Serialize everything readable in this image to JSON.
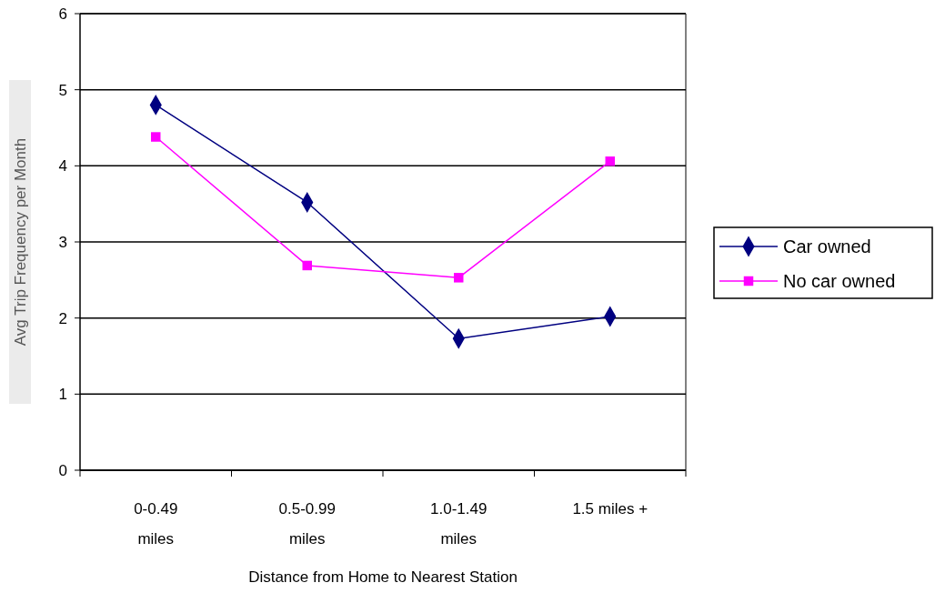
{
  "chart_data": {
    "type": "line",
    "xlabel": "Distance from Home to Nearest Station",
    "ylabel": "Avg Trip Frequency per Month",
    "categories": [
      "0-0.49 miles",
      "0.5-0.99 miles",
      "1.0-1.49 miles",
      "1.5 miles +"
    ],
    "ylim": [
      0,
      6
    ],
    "yticks": [
      0,
      1,
      2,
      3,
      4,
      5,
      6
    ],
    "grid": "y",
    "legend": "right",
    "series": [
      {
        "name": "Car owned",
        "color": "#000080",
        "marker": "diamond",
        "values": [
          4.8,
          3.52,
          1.73,
          2.02
        ]
      },
      {
        "name": "No car owned",
        "color": "#ff00ff",
        "marker": "square",
        "values": [
          4.38,
          2.69,
          2.53,
          4.06
        ]
      }
    ]
  }
}
